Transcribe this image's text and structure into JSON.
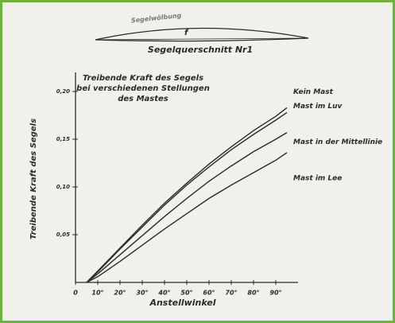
{
  "sketch": {
    "caption": "Segelquerschnitt Nr1",
    "curvature_label": "Segelwölbung",
    "depth_label": "f"
  },
  "chart_data": {
    "type": "line",
    "title": [
      "Treibende Kraft des Segels",
      "bei verschiedenen Stellungen",
      "des Mastes"
    ],
    "y_label": "Treibende Kraft des Segels",
    "x_label": "Anstellwinkel",
    "x": [
      5,
      10,
      20,
      30,
      40,
      50,
      60,
      70,
      80,
      90,
      95
    ],
    "series": [
      {
        "name": "Kein Mast",
        "color": "#2b2b2b",
        "values": [
          0,
          0.012,
          0.036,
          0.06,
          0.083,
          0.104,
          0.124,
          0.142,
          0.159,
          0.174,
          0.183
        ]
      },
      {
        "name": "Mast im Luv",
        "color": "#2b2b2b",
        "values": [
          0,
          0.011,
          0.035,
          0.058,
          0.081,
          0.102,
          0.121,
          0.139,
          0.155,
          0.17,
          0.178
        ]
      },
      {
        "name": "Mast in der Mittellinie",
        "color": "#2b2b2b",
        "values": [
          0,
          0.009,
          0.029,
          0.049,
          0.069,
          0.088,
          0.106,
          0.122,
          0.137,
          0.15,
          0.157
        ]
      },
      {
        "name": "Mast im Lee",
        "color": "#2b2b2b",
        "values": [
          0,
          0.006,
          0.022,
          0.039,
          0.056,
          0.072,
          0.088,
          0.102,
          0.115,
          0.128,
          0.136
        ]
      }
    ],
    "xlim": [
      0,
      100
    ],
    "ylim": [
      0,
      0.22
    ],
    "xticks": [
      0,
      {
        "value": 10,
        "label": "10°"
      },
      {
        "value": 20,
        "label": "20°"
      },
      {
        "value": 30,
        "label": "30°"
      },
      {
        "value": 40,
        "label": "40°"
      },
      {
        "value": 50,
        "label": "50°"
      },
      {
        "value": 60,
        "label": "60°"
      },
      {
        "value": 70,
        "label": "70°"
      },
      {
        "value": 80,
        "label": "80°"
      },
      {
        "value": 90,
        "label": "90°"
      }
    ],
    "yticks": [
      {
        "value": 0.05,
        "label": "0,05"
      },
      {
        "value": 0.1,
        "label": "0,10"
      },
      {
        "value": 0.15,
        "label": "0,15"
      },
      {
        "value": 0.2,
        "label": "0,20"
      }
    ],
    "grid": false
  }
}
